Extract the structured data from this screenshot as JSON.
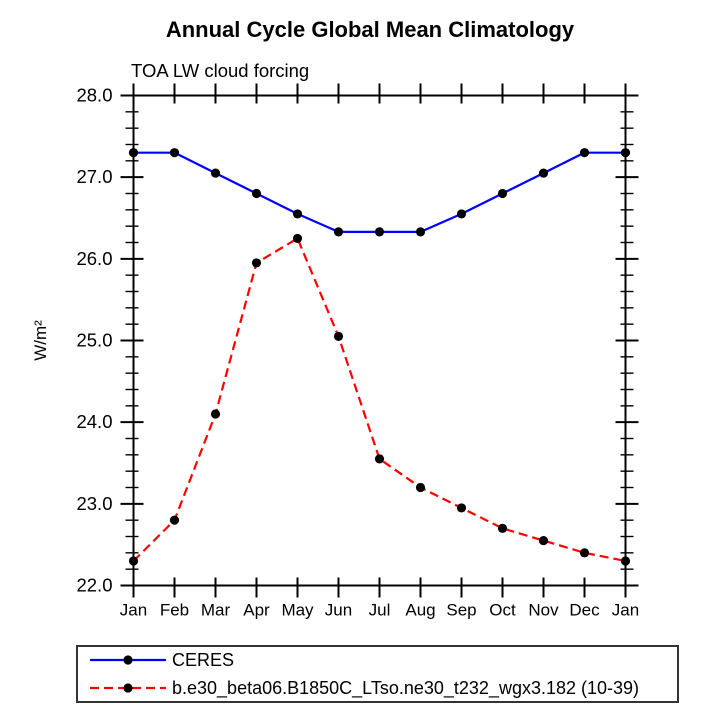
{
  "page": {
    "background": "#ffffff",
    "axis_color": "#000000",
    "marker_color": "#000000"
  },
  "chart_data": {
    "type": "line",
    "title": "Annual Cycle Global Mean Climatology",
    "subtitle": "TOA LW cloud forcing",
    "ylabel": "W/m²",
    "xlabel": "",
    "categories": [
      "Jan",
      "Feb",
      "Mar",
      "Apr",
      "May",
      "Jun",
      "Jul",
      "Aug",
      "Sep",
      "Oct",
      "Nov",
      "Dec",
      "Jan"
    ],
    "ylim": [
      22.0,
      28.0
    ],
    "y_major_step": 1.0,
    "y_minor_step": 0.2,
    "y_tick_labels": [
      "22.0",
      "23.0",
      "24.0",
      "25.0",
      "26.0",
      "27.0",
      "28.0"
    ],
    "grid": false,
    "legend_position": "bottom-left-box",
    "series": [
      {
        "name": "CERES",
        "color": "#0000ff",
        "line_style": "solid",
        "marker": "filled-black-circle",
        "values": [
          27.3,
          27.3,
          27.05,
          26.8,
          26.55,
          26.33,
          26.33,
          26.33,
          26.55,
          26.8,
          27.05,
          27.3,
          27.3
        ]
      },
      {
        "name": "b.e30_beta06.B1850C_LTso.ne30_t232_wgx3.182 (10-39)",
        "color": "#ff0000",
        "line_style": "dashed",
        "marker": "filled-black-circle",
        "values": [
          22.3,
          22.8,
          24.1,
          25.95,
          26.25,
          25.05,
          23.55,
          23.2,
          22.95,
          22.7,
          22.55,
          22.4,
          22.3
        ]
      }
    ]
  }
}
